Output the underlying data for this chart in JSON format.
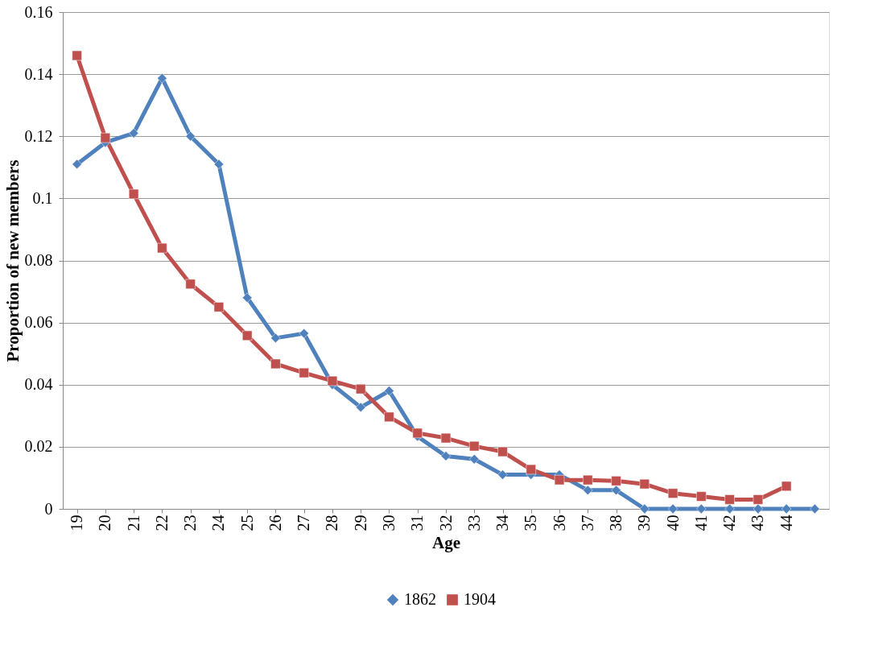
{
  "chart_data": {
    "type": "line",
    "xlabel": "Age",
    "ylabel": "Proportion of new members",
    "categories": [
      "19",
      "20",
      "21",
      "22",
      "23",
      "24",
      "25",
      "26",
      "27",
      "28",
      "29",
      "30",
      "31",
      "32",
      "33",
      "34",
      "35",
      "36",
      "37",
      "38",
      "39",
      "40",
      "41",
      "42",
      "43",
      "44",
      null
    ],
    "series": [
      {
        "name": "1862",
        "color": "#4f81bd",
        "marker": "diamond",
        "values": [
          0.111,
          0.118,
          0.121,
          0.1387,
          0.12,
          0.111,
          0.068,
          0.055,
          0.0565,
          0.04,
          0.0327,
          0.038,
          0.0233,
          0.017,
          0.016,
          0.011,
          0.011,
          0.011,
          0.006,
          0.006,
          0,
          0,
          0,
          0,
          0,
          0,
          0
        ]
      },
      {
        "name": "1904",
        "color": "#c0504d",
        "marker": "square",
        "values": [
          0.146,
          0.1195,
          0.1014,
          0.084,
          0.0724,
          0.065,
          0.0558,
          0.0467,
          0.0438,
          0.0412,
          0.0386,
          0.0296,
          0.0244,
          0.0228,
          0.0202,
          0.0184,
          0.0127,
          0.0093,
          0.0093,
          0.009,
          0.008,
          0.005,
          0.004,
          0.003,
          0.003,
          0.0073,
          null
        ]
      }
    ],
    "ylim": [
      0,
      0.16
    ],
    "yticks": [
      0,
      0.02,
      0.04,
      0.06,
      0.08,
      {
        "value": 0.1,
        "label": "0.1"
      },
      0.12,
      0.14,
      0.16
    ],
    "grid": "y",
    "legend": "bottom",
    "line_style": "solid"
  }
}
